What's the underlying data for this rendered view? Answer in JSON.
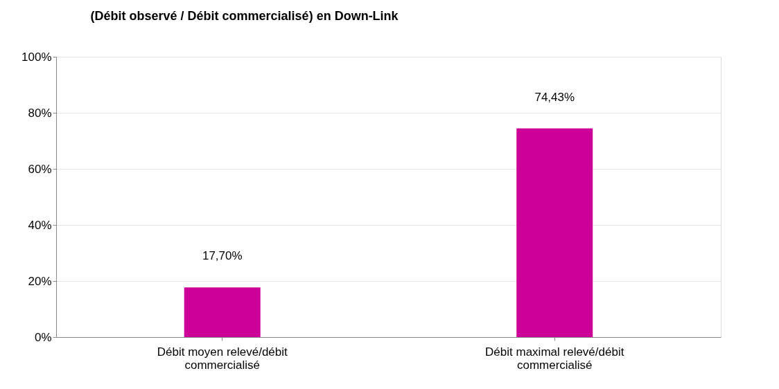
{
  "chart_data": {
    "type": "bar",
    "title": "(Débit observé / Débit commercialisé) en Down-Link",
    "categories": [
      "Débit moyen relevé/débit commercialisé",
      "Débit maximal relevé/débit commercialisé"
    ],
    "values": [
      17.7,
      74.43
    ],
    "color": "#cc0099",
    "value_labels": [
      "17,70%",
      "74,43%"
    ],
    "ylim": [
      0,
      100
    ],
    "yticks": [
      {
        "value": 0,
        "label": "0%"
      },
      {
        "value": 20,
        "label": "20%"
      },
      {
        "value": 40,
        "label": "40%"
      },
      {
        "value": 60,
        "label": "60%"
      },
      {
        "value": 80,
        "label": "80%"
      },
      {
        "value": 100,
        "label": "100%"
      }
    ],
    "grid": "y"
  }
}
